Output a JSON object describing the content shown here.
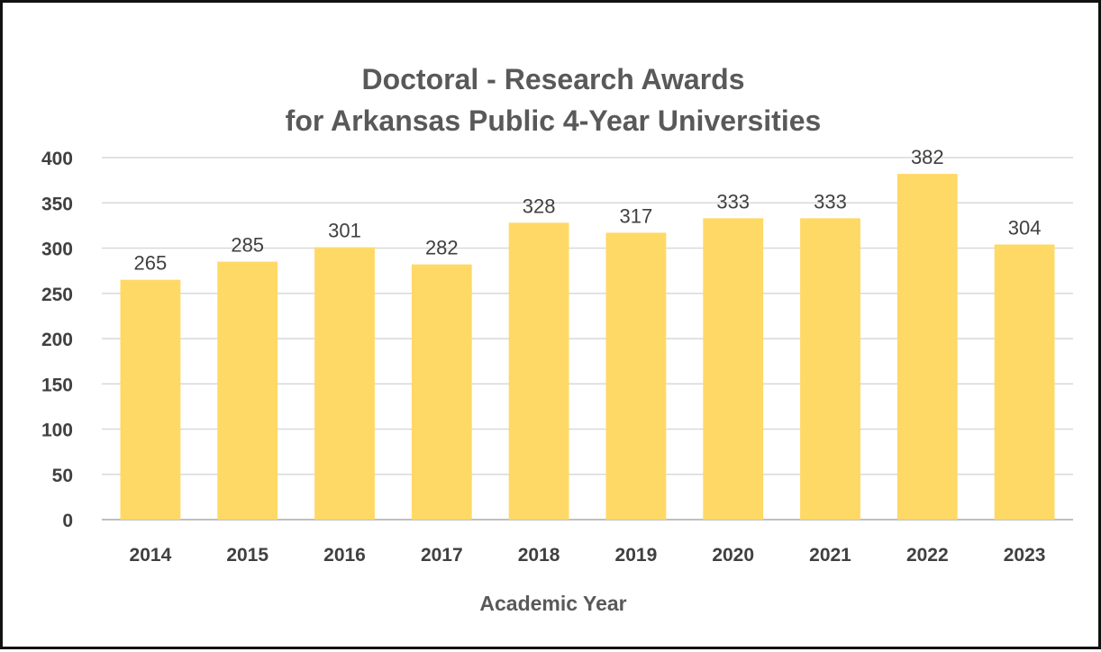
{
  "chart_data": {
    "type": "bar",
    "title_lines": [
      "Doctoral - Research Awards",
      "for Arkansas Public 4-Year Universities"
    ],
    "xlabel": "Academic Year",
    "ylabel": "",
    "categories": [
      "2014",
      "2015",
      "2016",
      "2017",
      "2018",
      "2019",
      "2020",
      "2021",
      "2022",
      "2023"
    ],
    "values": [
      265,
      285,
      301,
      282,
      328,
      317,
      333,
      333,
      382,
      304
    ],
    "data_labels": [
      "265",
      "285",
      "301",
      "282",
      "328",
      "317",
      "333",
      "333",
      "382",
      "304"
    ],
    "y_ticks": [
      "0",
      "50",
      "100",
      "150",
      "200",
      "250",
      "300",
      "350",
      "400"
    ],
    "ylim": [
      0,
      400
    ],
    "grid": true,
    "legend": "none",
    "colors": {
      "bar": "#FFD966",
      "grid": "#D9D9D9",
      "axis": "#BFBFBF",
      "text": "#404040",
      "title": "#595959",
      "frame": "#111111"
    }
  }
}
